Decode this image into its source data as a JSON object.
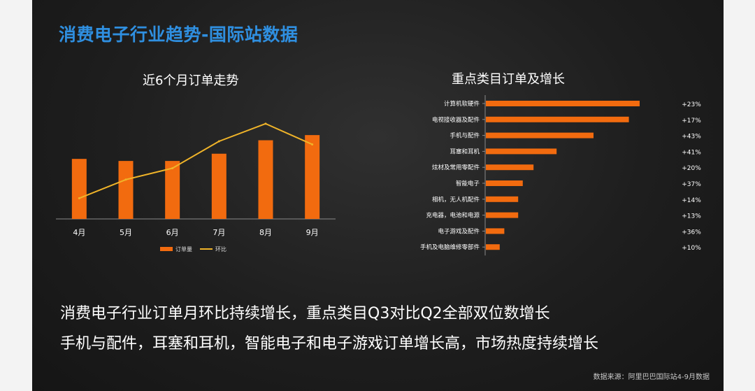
{
  "slide": {
    "title": "消费电子行业趋势-国际站数据",
    "summary_line1": "消费电子行业订单月环比持续增长，重点类目Q3对比Q2全部双位数增长",
    "summary_line2": "手机与配件，耳塞和耳机，智能电子和电子游戏订单增长高，市场热度持续增长",
    "source": "数据来源：阿里巴巴国际站4-9月数据"
  },
  "colors": {
    "title": "#2f8fe0",
    "bar": "#f26b0f",
    "line": "#f0b429",
    "background": "#1e1e1e"
  },
  "chart_data": [
    {
      "type": "bar",
      "title": "近6个月订单走势",
      "categories": [
        "4月",
        "5月",
        "6月",
        "7月",
        "8月",
        "9月"
      ],
      "series": [
        {
          "name": "订单量",
          "type": "bar",
          "values": [
            0.58,
            0.56,
            0.56,
            0.63,
            0.76,
            0.81
          ]
        },
        {
          "name": "环比",
          "type": "line",
          "values": [
            0.2,
            0.38,
            0.49,
            0.75,
            0.92,
            0.72
          ]
        }
      ],
      "ylim": [
        0,
        1
      ],
      "axis_labels_shown": false,
      "legend": "bottom",
      "grid": false
    },
    {
      "type": "bar",
      "orientation": "horizontal",
      "title": "重点类目订单及增长",
      "categories": [
        "计算机软硬件",
        "电视接收器及配件",
        "手机与配件",
        "耳塞和耳机",
        "炫材及常用零配件",
        "智能电子",
        "相机，无人机配件",
        "充电器，电池和电源",
        "电子游戏及配件",
        "手机及电脑维修零部件"
      ],
      "values": [
        100,
        93,
        70,
        46,
        31,
        24,
        21,
        21,
        12,
        9
      ],
      "growth_labels": [
        "+23%",
        "+17%",
        "+43%",
        "+41%",
        "+20%",
        "+37%",
        "+14%",
        "+13%",
        "+36%",
        "+10%"
      ],
      "xlim": [
        0,
        100
      ],
      "axis_labels_shown": false,
      "grid": false
    }
  ]
}
